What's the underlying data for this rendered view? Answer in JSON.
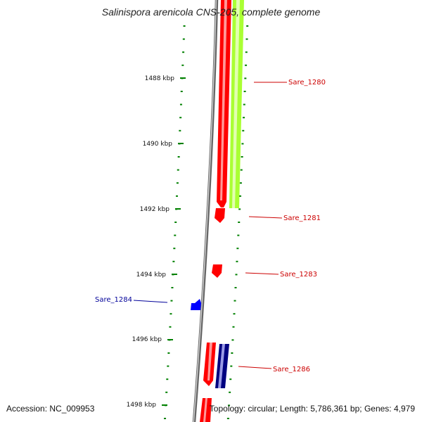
{
  "title": "Salinispora arenicola CNS-205, complete genome",
  "accession_text": "Accession: NC_009953",
  "topology_text": "Topology: circular; Length: 5,786,361 bp; Genes: 4,979",
  "colors": {
    "scale": "#008000",
    "backbone": "#888888",
    "forward_gene": "#ff0000",
    "forward_label": "#cc0000",
    "reverse_gene": "#0000ff",
    "reverse_label": "#000099",
    "other_feature": "#aaff33",
    "other_reverse": "#000080"
  },
  "scale_ticks": [
    "1488 kbp",
    "1490 kbp",
    "1492 kbp",
    "1494 kbp",
    "1496 kbp",
    "1498 kbp"
  ],
  "gene_labels": [
    {
      "label": "Sare_1280",
      "strand": "forward"
    },
    {
      "label": "Sare_1281",
      "strand": "forward"
    },
    {
      "label": "Sare_1283",
      "strand": "forward"
    },
    {
      "label": "Sare_1284",
      "strand": "reverse"
    },
    {
      "label": "Sare_1286",
      "strand": "forward"
    }
  ]
}
